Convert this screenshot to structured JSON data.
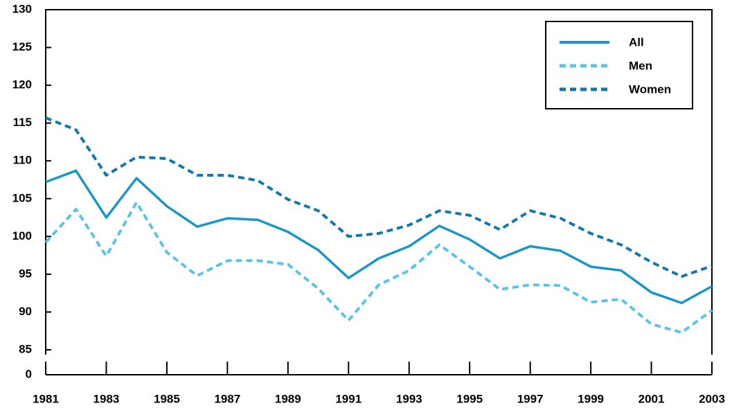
{
  "chart_data": {
    "type": "line",
    "x": [
      1981,
      1982,
      1983,
      1984,
      1985,
      1986,
      1987,
      1988,
      1989,
      1990,
      1991,
      1992,
      1993,
      1994,
      1995,
      1996,
      1997,
      1998,
      1999,
      2000,
      2001,
      2002,
      2003
    ],
    "xlim": [
      1981,
      2003
    ],
    "xticks": [
      1981,
      1983,
      1985,
      1987,
      1989,
      1991,
      1993,
      1995,
      1997,
      1999,
      2001,
      2003
    ],
    "ylim": [
      85,
      130
    ],
    "yticks": [
      0,
      85,
      90,
      95,
      100,
      105,
      110,
      115,
      120,
      125,
      130
    ],
    "axis_break": true,
    "legend": "upper right",
    "series": [
      {
        "name": "All",
        "color": "#1a95c8",
        "dash": false,
        "values": [
          107.2,
          108.7,
          102.5,
          107.7,
          104.0,
          101.3,
          102.4,
          102.2,
          100.6,
          98.2,
          94.5,
          97.1,
          98.7,
          101.4,
          99.6,
          97.1,
          98.7,
          98.1,
          96.0,
          95.5,
          92.6,
          91.2,
          93.4
        ]
      },
      {
        "name": "Men",
        "color": "#5bc4e6",
        "dash": true,
        "values": [
          99.2,
          103.6,
          97.4,
          104.5,
          97.9,
          94.8,
          96.8,
          96.8,
          96.3,
          93.1,
          88.9,
          93.6,
          95.5,
          98.9,
          96.0,
          93.0,
          93.6,
          93.5,
          91.3,
          91.7,
          88.4,
          87.3,
          90.2
        ]
      },
      {
        "name": "Women",
        "color": "#1277aa",
        "dash": true,
        "values": [
          115.7,
          114.1,
          108.1,
          110.5,
          110.3,
          108.1,
          108.1,
          107.4,
          104.9,
          103.4,
          100.0,
          100.4,
          101.5,
          103.4,
          102.8,
          100.9,
          103.4,
          102.4,
          100.4,
          98.9,
          96.6,
          94.7,
          96.1
        ]
      }
    ]
  }
}
